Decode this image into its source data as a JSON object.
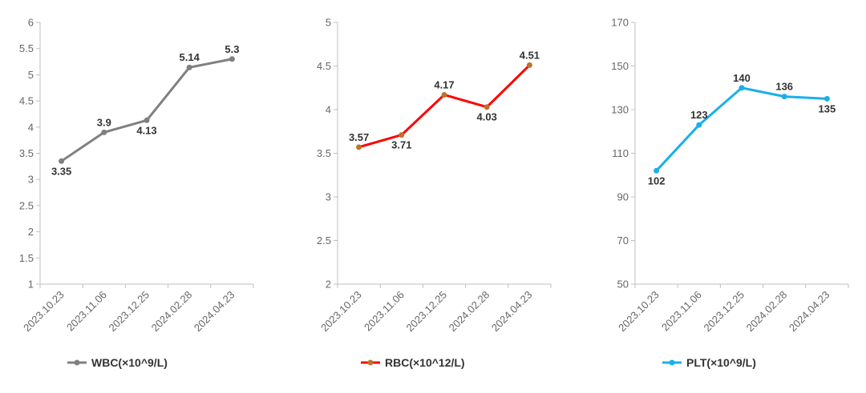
{
  "chart_data": [
    {
      "type": "line",
      "categories": [
        "2023.10.23",
        "2023.11.06",
        "2023.12.25",
        "2024.02.28",
        "2024.04.23"
      ],
      "series": [
        {
          "name": "WBC(×10^9/L)",
          "values": [
            3.35,
            3.9,
            4.13,
            5.14,
            5.3
          ],
          "color": "#808080",
          "marker_color": "#808080"
        }
      ],
      "data_labels": [
        "3.35",
        "3.9",
        "4.13",
        "5.14",
        "5.3"
      ],
      "label_positions": [
        "below",
        "above",
        "below",
        "above",
        "above"
      ],
      "yticks": [
        "1",
        "1.5",
        "2",
        "2.5",
        "3",
        "3.5",
        "4",
        "4.5",
        "5",
        "5.5",
        "6"
      ],
      "ylim": [
        1,
        6
      ],
      "legend": "bottom",
      "grid": false
    },
    {
      "type": "line",
      "categories": [
        "2023.10.23",
        "2023.11.06",
        "2023.12.25",
        "2024.02.28",
        "2024.04.23"
      ],
      "series": [
        {
          "name": "RBC(×10^12/L)",
          "values": [
            3.57,
            3.71,
            4.17,
            4.03,
            4.51
          ],
          "color": "#ff0000",
          "marker_color": "#c0722c"
        }
      ],
      "data_labels": [
        "3.57",
        "3.71",
        "4.17",
        "4.03",
        "4.51"
      ],
      "label_positions": [
        "above",
        "below",
        "above",
        "below",
        "above"
      ],
      "yticks": [
        "2",
        "2.5",
        "3",
        "3.5",
        "4",
        "4.5",
        "5"
      ],
      "ylim": [
        2,
        5
      ],
      "legend": "bottom",
      "grid": false
    },
    {
      "type": "line",
      "categories": [
        "2023.10.23",
        "2023.11.06",
        "2023.12.25",
        "2024.02.28",
        "2024.04.23"
      ],
      "series": [
        {
          "name": "PLT(×10^9/L)",
          "values": [
            102,
            123,
            140,
            136,
            135
          ],
          "color": "#1ab0e8",
          "marker_color": "#1ab0e8"
        }
      ],
      "data_labels": [
        "102",
        "123",
        "140",
        "136",
        "135"
      ],
      "label_positions": [
        "below",
        "above",
        "above",
        "above",
        "below"
      ],
      "yticks": [
        "50",
        "70",
        "90",
        "110",
        "130",
        "150",
        "170"
      ],
      "ylim": [
        50,
        170
      ],
      "legend": "bottom",
      "grid": false
    }
  ]
}
